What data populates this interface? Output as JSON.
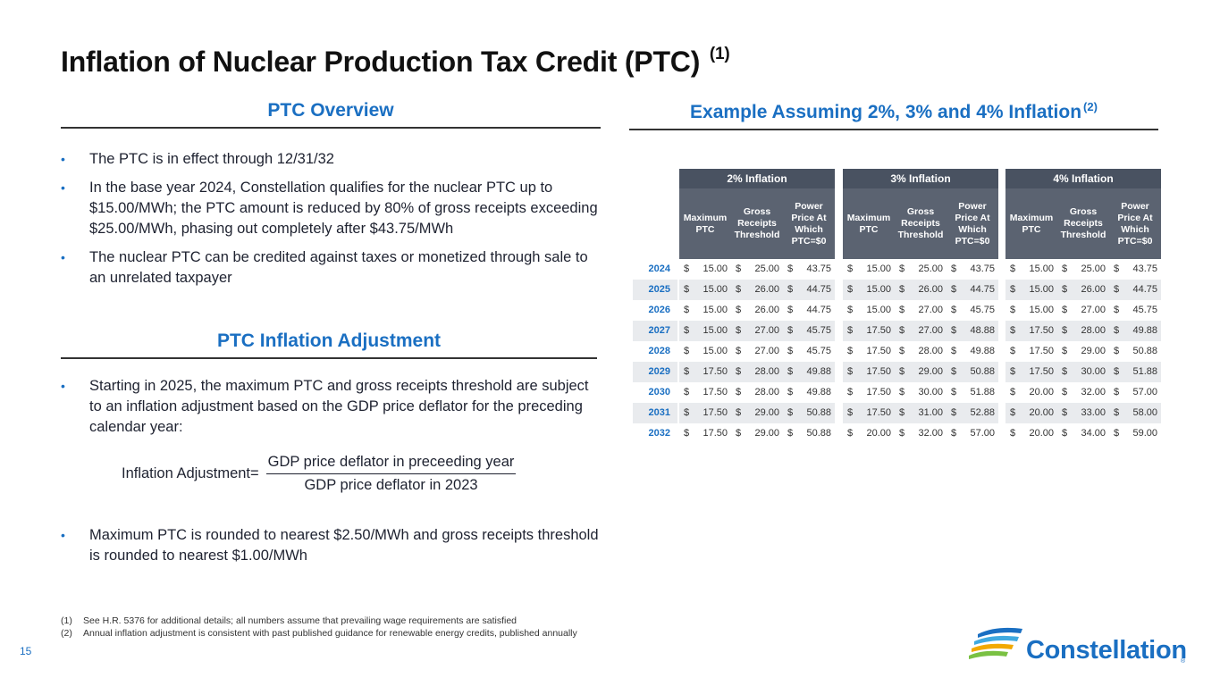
{
  "title": "Inflation of Nuclear Production Tax Credit (PTC)",
  "title_sup": "(1)",
  "overview": {
    "heading": "PTC Overview",
    "bullets": [
      "The PTC is in effect through 12/31/32",
      "In the base year 2024, Constellation qualifies for the nuclear PTC up to $15.00/MWh; the PTC amount is reduced by 80% of gross receipts exceeding $25.00/MWh, phasing out completely after $43.75/MWh",
      "The nuclear PTC can be credited against taxes or monetized through sale to an unrelated taxpayer"
    ]
  },
  "adjustment": {
    "heading": "PTC Inflation Adjustment",
    "bullet_1": "Starting in 2025, the maximum PTC and gross receipts threshold are subject to an inflation adjustment based on the GDP price deflator for the preceding calendar year:",
    "formula_label": "Inflation Adjustment=",
    "formula_numerator": "GDP price deflator in preceeding year",
    "formula_denominator": "GDP price deflator in 2023",
    "bullet_2": "Maximum PTC is rounded to nearest $2.50/MWh and gross receipts threshold is rounded to nearest $1.00/MWh"
  },
  "example": {
    "heading": "Example Assuming 2%, 3% and 4% Inflation",
    "heading_sup": "(2)",
    "currency": "$",
    "sub_headers": [
      "Maximum PTC",
      "Gross Receipts Threshold",
      "Power Price At Which PTC=$0"
    ],
    "years": [
      "2024",
      "2025",
      "2026",
      "2027",
      "2028",
      "2029",
      "2030",
      "2031",
      "2032"
    ],
    "blocks": [
      {
        "label": "2% Inflation",
        "rows": [
          [
            "15.00",
            "25.00",
            "43.75"
          ],
          [
            "15.00",
            "26.00",
            "44.75"
          ],
          [
            "15.00",
            "26.00",
            "44.75"
          ],
          [
            "15.00",
            "27.00",
            "45.75"
          ],
          [
            "15.00",
            "27.00",
            "45.75"
          ],
          [
            "17.50",
            "28.00",
            "49.88"
          ],
          [
            "17.50",
            "28.00",
            "49.88"
          ],
          [
            "17.50",
            "29.00",
            "50.88"
          ],
          [
            "17.50",
            "29.00",
            "50.88"
          ]
        ]
      },
      {
        "label": "3% Inflation",
        "rows": [
          [
            "15.00",
            "25.00",
            "43.75"
          ],
          [
            "15.00",
            "26.00",
            "44.75"
          ],
          [
            "15.00",
            "27.00",
            "45.75"
          ],
          [
            "17.50",
            "27.00",
            "48.88"
          ],
          [
            "17.50",
            "28.00",
            "49.88"
          ],
          [
            "17.50",
            "29.00",
            "50.88"
          ],
          [
            "17.50",
            "30.00",
            "51.88"
          ],
          [
            "17.50",
            "31.00",
            "52.88"
          ],
          [
            "20.00",
            "32.00",
            "57.00"
          ]
        ]
      },
      {
        "label": "4% Inflation",
        "rows": [
          [
            "15.00",
            "25.00",
            "43.75"
          ],
          [
            "15.00",
            "26.00",
            "44.75"
          ],
          [
            "15.00",
            "27.00",
            "45.75"
          ],
          [
            "17.50",
            "28.00",
            "49.88"
          ],
          [
            "17.50",
            "29.00",
            "50.88"
          ],
          [
            "17.50",
            "30.00",
            "51.88"
          ],
          [
            "20.00",
            "32.00",
            "57.00"
          ],
          [
            "20.00",
            "33.00",
            "58.00"
          ],
          [
            "20.00",
            "34.00",
            "59.00"
          ]
        ]
      }
    ]
  },
  "footnotes": [
    {
      "num": "(1)",
      "text": "See H.R. 5376 for additional details; all numbers assume that prevailing wage requirements are satisfied"
    },
    {
      "num": "(2)",
      "text": "Annual inflation adjustment is consistent with past published guidance for renewable energy credits, published annually"
    }
  ],
  "page_number": "15",
  "logo": {
    "text": "Constellation",
    "reg": "®"
  },
  "colors": {
    "accent": "#1a6fc2",
    "header_dark": "#495261",
    "header_mid": "#5b6371",
    "stripe": "#e9ebee"
  }
}
